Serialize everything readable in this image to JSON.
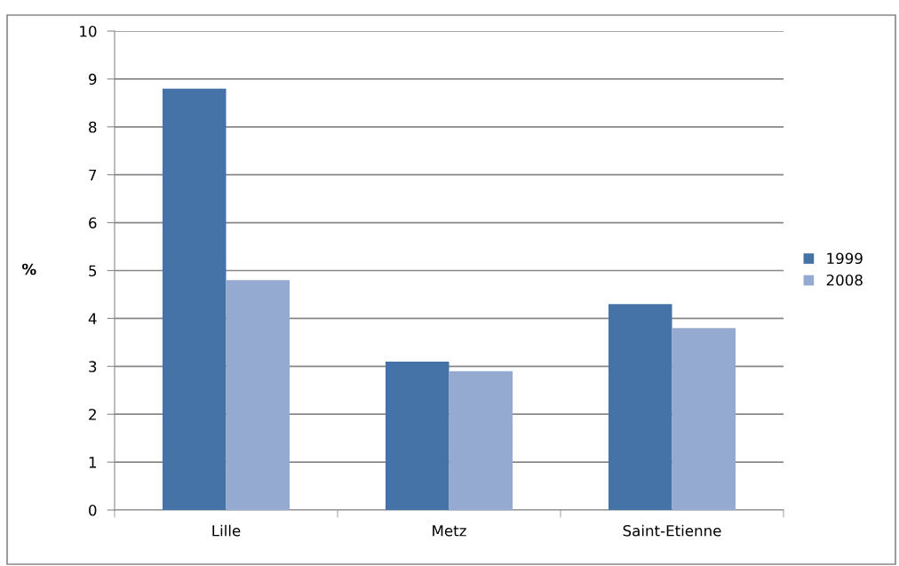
{
  "chart_data": {
    "type": "bar",
    "ylabel": "%",
    "categories": [
      "Lille",
      "Metz",
      "Saint-Etienne"
    ],
    "series": [
      {
        "name": "1999",
        "color": "#4572a7",
        "values": [
          8.8,
          3.1,
          4.3
        ]
      },
      {
        "name": "2008",
        "color": "#95aad0",
        "values": [
          4.8,
          2.9,
          3.8
        ]
      }
    ],
    "ylim": [
      0,
      10
    ],
    "yticks": [
      0,
      1,
      2,
      3,
      4,
      5,
      6,
      7,
      8,
      9,
      10
    ],
    "grid": "y",
    "legend": "right"
  }
}
